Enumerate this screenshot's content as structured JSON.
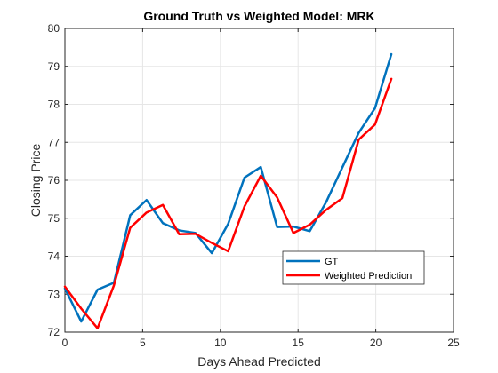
{
  "chart_data": {
    "type": "line",
    "title": "Ground Truth vs Weighted Model: MRK",
    "xlabel": "Days Ahead Predicted",
    "ylabel": "Closing Price",
    "xlim": [
      0,
      25
    ],
    "ylim": [
      72,
      80
    ],
    "xticks": [
      0,
      5,
      10,
      15,
      20,
      25
    ],
    "yticks": [
      72,
      73,
      74,
      75,
      76,
      77,
      78,
      79,
      80
    ],
    "grid": true,
    "legend_position": "lower-right",
    "series": [
      {
        "name": "GT",
        "color": "#0072BD",
        "x": [
          0,
          1.05,
          2.1,
          3.15,
          4.2,
          5.25,
          6.3,
          7.35,
          8.4,
          9.45,
          10.5,
          11.55,
          12.6,
          13.65,
          14.7,
          15.75,
          16.8,
          17.85,
          18.9,
          19.95,
          21
        ],
        "y": [
          73.15,
          72.28,
          73.12,
          73.3,
          75.08,
          75.48,
          74.87,
          74.68,
          74.61,
          74.08,
          74.85,
          76.07,
          76.35,
          74.77,
          74.78,
          74.66,
          75.42,
          76.34,
          77.25,
          77.9,
          79.32
        ]
      },
      {
        "name": "Weighted Prediction",
        "color": "#FF0000",
        "x": [
          0,
          1.05,
          2.1,
          3.15,
          4.2,
          5.25,
          6.3,
          7.35,
          8.4,
          9.45,
          10.5,
          11.55,
          12.6,
          13.65,
          14.7,
          15.75,
          16.8,
          17.85,
          18.9,
          19.95,
          21
        ],
        "y": [
          73.2,
          72.62,
          72.1,
          73.23,
          74.75,
          75.15,
          75.35,
          74.58,
          74.59,
          74.35,
          74.13,
          75.31,
          76.12,
          75.55,
          74.61,
          74.83,
          75.22,
          75.53,
          77.07,
          77.47,
          78.67
        ]
      }
    ]
  }
}
